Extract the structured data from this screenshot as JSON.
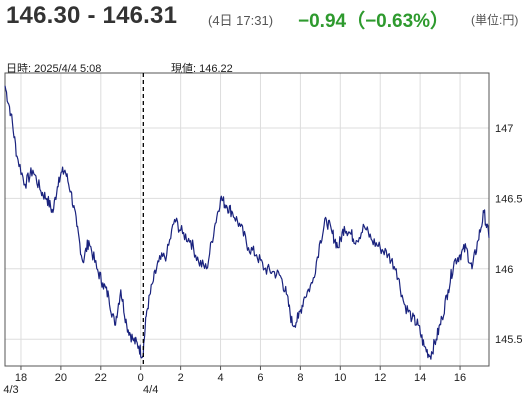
{
  "header": {
    "price_range": "146.30 - 146.31",
    "time": "(4日 17:31)",
    "change": "−0.94（−0.63%）",
    "unit": "(単位:円)"
  },
  "info": {
    "datetime": "日時: 2025/4/4  5:08",
    "current": "現値: 146.22"
  },
  "colors": {
    "line": "#1a237e",
    "change": "#2e9a2e",
    "grid": "#dddddd",
    "frame": "#555555"
  },
  "chart_data": {
    "type": "line",
    "title": "",
    "xlabel": "",
    "ylabel": "",
    "ylim": [
      145.31,
      147.39
    ],
    "x_range_hours": [
      17.2,
      41.45
    ],
    "x_ticks": [
      {
        "h": 18,
        "label": "18"
      },
      {
        "h": 20,
        "label": "20"
      },
      {
        "h": 22,
        "label": "22"
      },
      {
        "h": 24,
        "label": "0"
      },
      {
        "h": 26,
        "label": "2"
      },
      {
        "h": 28,
        "label": "4"
      },
      {
        "h": 30,
        "label": "6"
      },
      {
        "h": 32,
        "label": "8"
      },
      {
        "h": 34,
        "label": "10"
      },
      {
        "h": 36,
        "label": "12"
      },
      {
        "h": 38,
        "label": "14"
      },
      {
        "h": 40,
        "label": "16"
      }
    ],
    "date_labels": [
      {
        "h": 17.5,
        "label": "4/3"
      },
      {
        "h": 24.5,
        "label": "4/4"
      }
    ],
    "y_ticks": [
      {
        "v": 147,
        "label": "147"
      },
      {
        "v": 146.5,
        "label": "146.5"
      },
      {
        "v": 146,
        "label": "146"
      },
      {
        "v": 145.5,
        "label": "145.5"
      }
    ],
    "crosshair_h": 24.13,
    "grid": true,
    "series": [
      {
        "points": [
          [
            17.2,
            147.3
          ],
          [
            17.5,
            147.1
          ],
          [
            17.8,
            146.8
          ],
          [
            18.2,
            146.6
          ],
          [
            18.6,
            146.7
          ],
          [
            19.0,
            146.55
          ],
          [
            19.3,
            146.5
          ],
          [
            19.6,
            146.4
          ],
          [
            19.9,
            146.65
          ],
          [
            20.2,
            146.7
          ],
          [
            20.5,
            146.55
          ],
          [
            20.8,
            146.3
          ],
          [
            21.1,
            146.05
          ],
          [
            21.4,
            146.2
          ],
          [
            21.8,
            146.0
          ],
          [
            22.1,
            145.9
          ],
          [
            22.4,
            145.8
          ],
          [
            22.7,
            145.6
          ],
          [
            23.0,
            145.85
          ],
          [
            23.3,
            145.6
          ],
          [
            23.6,
            145.5
          ],
          [
            23.9,
            145.45
          ],
          [
            24.1,
            145.38
          ],
          [
            24.3,
            145.7
          ],
          [
            24.6,
            145.9
          ],
          [
            24.9,
            146.05
          ],
          [
            25.3,
            146.1
          ],
          [
            25.7,
            146.35
          ],
          [
            26.1,
            146.25
          ],
          [
            26.5,
            146.2
          ],
          [
            26.9,
            146.05
          ],
          [
            27.3,
            146.0
          ],
          [
            27.7,
            146.3
          ],
          [
            28.0,
            146.5
          ],
          [
            28.3,
            146.45
          ],
          [
            28.6,
            146.4
          ],
          [
            29.0,
            146.3
          ],
          [
            29.4,
            146.15
          ],
          [
            29.8,
            146.1
          ],
          [
            30.2,
            146.0
          ],
          [
            30.6,
            145.98
          ],
          [
            31.0,
            145.95
          ],
          [
            31.3,
            145.82
          ],
          [
            31.6,
            145.6
          ],
          [
            31.9,
            145.65
          ],
          [
            32.2,
            145.8
          ],
          [
            32.6,
            145.9
          ],
          [
            33.0,
            146.2
          ],
          [
            33.3,
            146.35
          ],
          [
            33.6,
            146.25
          ],
          [
            33.9,
            146.15
          ],
          [
            34.2,
            146.3
          ],
          [
            34.5,
            146.25
          ],
          [
            34.8,
            146.2
          ],
          [
            35.2,
            146.3
          ],
          [
            35.6,
            146.2
          ],
          [
            36.0,
            146.15
          ],
          [
            36.4,
            146.1
          ],
          [
            36.8,
            146.0
          ],
          [
            37.2,
            145.75
          ],
          [
            37.6,
            145.65
          ],
          [
            37.9,
            145.6
          ],
          [
            38.2,
            145.45
          ],
          [
            38.5,
            145.38
          ],
          [
            38.8,
            145.5
          ],
          [
            39.1,
            145.65
          ],
          [
            39.4,
            145.85
          ],
          [
            39.7,
            146.05
          ],
          [
            40.0,
            146.1
          ],
          [
            40.3,
            146.15
          ],
          [
            40.6,
            146.0
          ],
          [
            40.9,
            146.2
          ],
          [
            41.2,
            146.4
          ],
          [
            41.45,
            146.22
          ]
        ]
      }
    ]
  }
}
